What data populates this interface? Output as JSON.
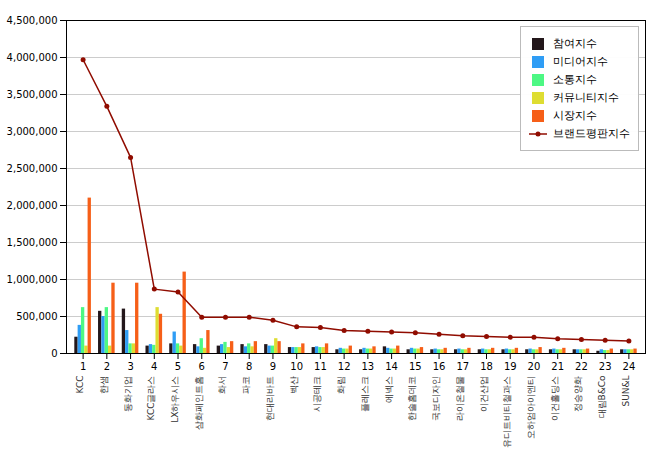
{
  "chart_data": {
    "type": "bar",
    "categories": [
      "KCC",
      "한샘",
      "동화기업",
      "KCC글라스",
      "LX하우시스",
      "삼화페인트홈",
      "화서",
      "파코",
      "현대리바트",
      "벡산",
      "시공테크",
      "화림",
      "플레스크",
      "에넥스",
      "한솔홈데코",
      "국보디자인",
      "라이온철물",
      "이건산업",
      "유디트비티철과스",
      "오하엄아이엔티",
      "이건홀딩스",
      "정승양화",
      "대림B&Co",
      "SUN&L"
    ],
    "x": [
      1,
      2,
      3,
      4,
      5,
      6,
      7,
      8,
      9,
      10,
      11,
      12,
      13,
      14,
      15,
      16,
      17,
      18,
      19,
      20,
      21,
      22,
      23,
      24
    ],
    "xlim": [
      0.3,
      24.7
    ],
    "xticks": [
      1,
      2,
      3,
      4,
      5,
      6,
      7,
      8,
      9,
      10,
      11,
      12,
      13,
      14,
      15,
      16,
      17,
      18,
      19,
      20,
      21,
      22,
      23,
      24
    ],
    "ylim": [
      0,
      4500000
    ],
    "yticks": [
      0,
      {
        "value": 500000,
        "label": "500,000"
      },
      {
        "value": 1000000,
        "label": "1,000,000"
      },
      {
        "value": 1500000,
        "label": "1,500,000"
      },
      {
        "value": 2000000,
        "label": "2,000,000"
      },
      {
        "value": 2500000,
        "label": "2,500,000"
      },
      {
        "value": 3000000,
        "label": "3,000,000"
      },
      {
        "value": 3500000,
        "label": "3,500,000"
      },
      {
        "value": 4000000,
        "label": "4,000,000"
      },
      {
        "value": 4500000,
        "label": "4,500,000"
      }
    ],
    "grid": "y",
    "legend": "upper right",
    "series": [
      {
        "name": "참여지수",
        "type": "bar",
        "values": [
          220000,
          570000,
          600000,
          100000,
          130000,
          120000,
          100000,
          120000,
          120000,
          80000,
          80000,
          50000,
          50000,
          90000,
          50000,
          50000,
          50000,
          50000,
          50000,
          50000,
          50000,
          50000,
          30000,
          50000
        ]
      },
      {
        "name": "미디어지수",
        "type": "bar",
        "values": [
          380000,
          500000,
          310000,
          120000,
          290000,
          90000,
          120000,
          90000,
          100000,
          80000,
          90000,
          70000,
          70000,
          70000,
          70000,
          60000,
          60000,
          60000,
          60000,
          60000,
          60000,
          50000,
          50000,
          50000
        ]
      },
      {
        "name": "소통지수",
        "type": "bar",
        "values": [
          620000,
          620000,
          130000,
          110000,
          130000,
          200000,
          150000,
          130000,
          100000,
          80000,
          80000,
          60000,
          60000,
          60000,
          60000,
          50000,
          50000,
          50000,
          50000,
          50000,
          50000,
          50000,
          40000,
          50000
        ]
      },
      {
        "name": "커뮤니티지수",
        "type": "bar",
        "values": [
          100000,
          100000,
          130000,
          620000,
          100000,
          70000,
          80000,
          90000,
          200000,
          80000,
          80000,
          60000,
          60000,
          60000,
          60000,
          50000,
          50000,
          50000,
          50000,
          50000,
          50000,
          50000,
          40000,
          50000
        ]
      },
      {
        "name": "시장지수",
        "type": "bar",
        "values": [
          2100000,
          950000,
          950000,
          530000,
          1100000,
          310000,
          160000,
          160000,
          160000,
          130000,
          130000,
          100000,
          90000,
          100000,
          80000,
          70000,
          70000,
          70000,
          70000,
          80000,
          70000,
          60000,
          60000,
          60000
        ]
      },
      {
        "name": "브랜드평판지수",
        "type": "line",
        "marker": "circle",
        "values": [
          3970000,
          3340000,
          2650000,
          870000,
          830000,
          490000,
          490000,
          490000,
          450000,
          360000,
          350000,
          310000,
          300000,
          290000,
          280000,
          260000,
          240000,
          230000,
          220000,
          220000,
          200000,
          190000,
          180000,
          170000
        ]
      }
    ]
  }
}
